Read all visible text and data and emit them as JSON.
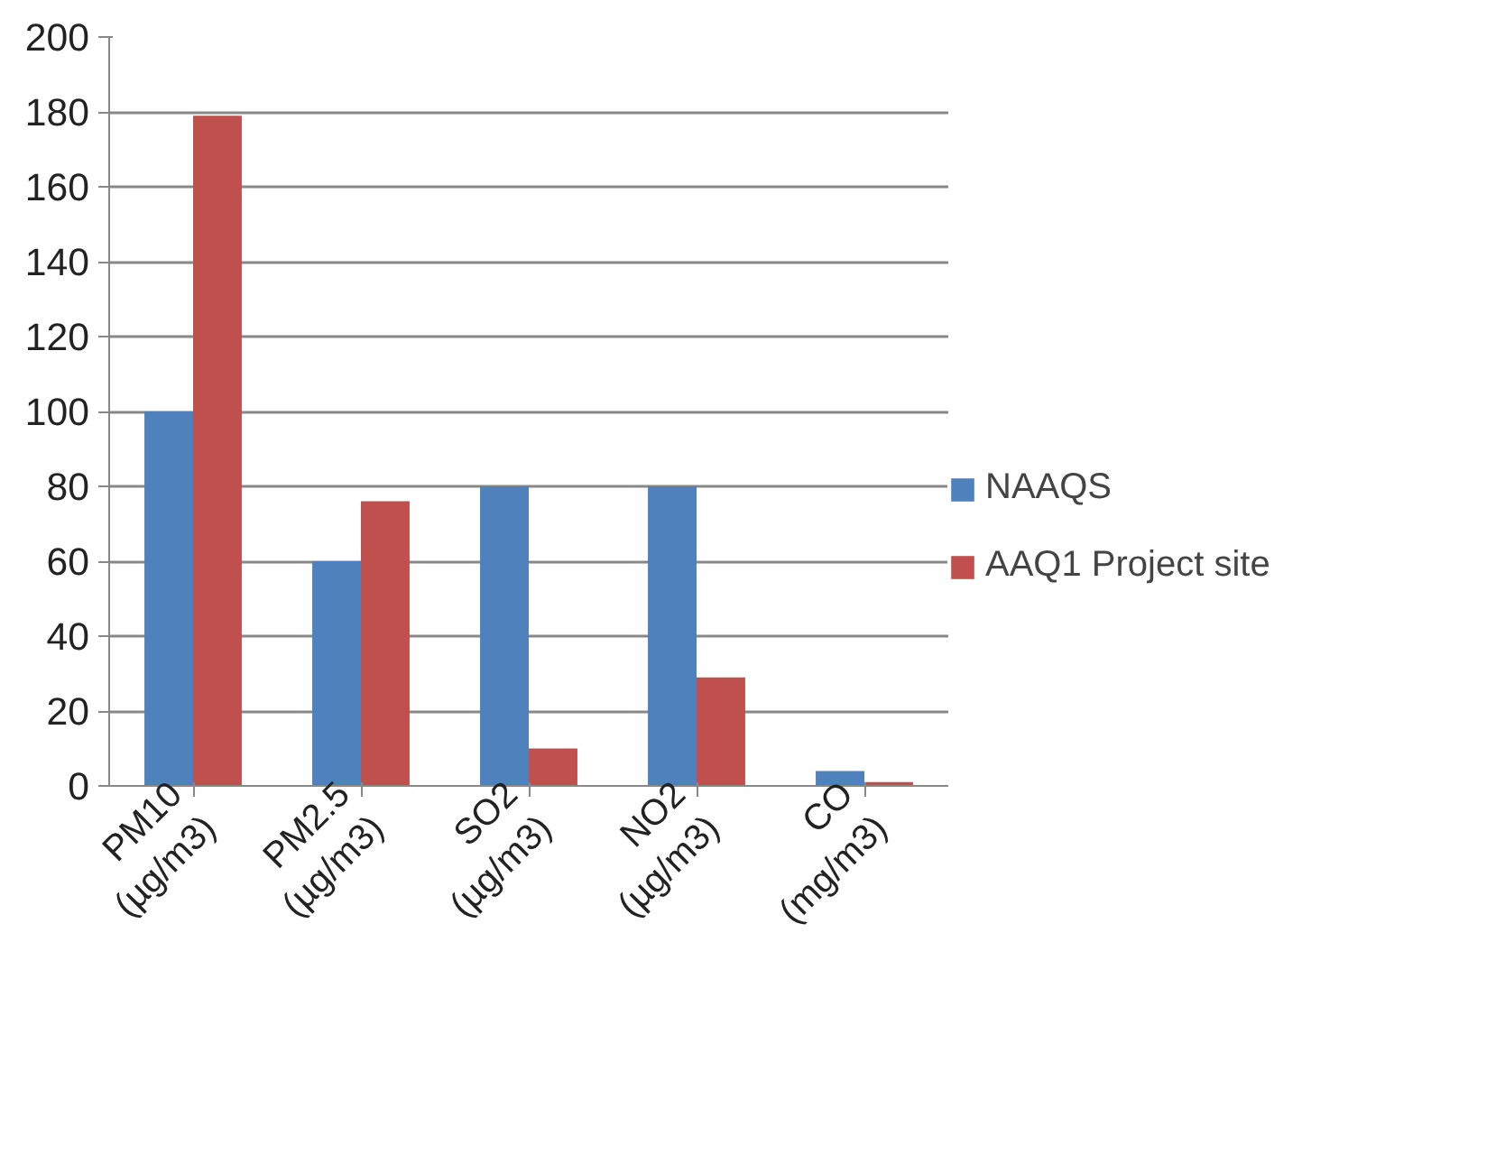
{
  "chart_data": {
    "type": "bar",
    "categories": [
      "PM10 (µg/m3)",
      "PM2.5 (µg/m3)",
      "SO2 (µg/m3)",
      "NO2 (µg/m3)",
      "CO (mg/m3)"
    ],
    "series": [
      {
        "name": "NAAQS",
        "color": "#4f81bd",
        "values": [
          100,
          60,
          80,
          80,
          4
        ]
      },
      {
        "name": "AAQ1 Project site",
        "color": "#c0504d",
        "values": [
          179,
          76,
          10,
          29,
          1
        ]
      }
    ],
    "ylim": [
      0,
      200
    ],
    "yticks": [
      0,
      20,
      40,
      60,
      80,
      100,
      120,
      140,
      160,
      180,
      200
    ],
    "grid": "y",
    "legend": "right"
  }
}
